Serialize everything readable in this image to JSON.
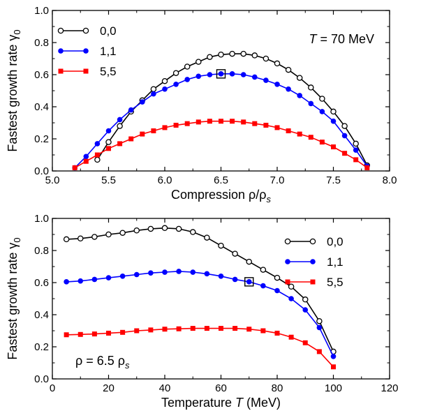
{
  "chart_data": [
    {
      "type": "line",
      "xlabel": "Compression ρ/ρ",
      "xlabel_sub": "s",
      "ylabel": "Fastest growth rate γ",
      "ylabel_sub": "0",
      "xlim": [
        5.0,
        8.0
      ],
      "ylim": [
        0.0,
        1.0
      ],
      "xticks": [
        "5.0",
        "5.5",
        "6.0",
        "6.5",
        "7.0",
        "7.5",
        "8.0"
      ],
      "yticks": [
        "0.0",
        "0.2",
        "0.4",
        "0.6",
        "0.8",
        "1.0"
      ],
      "legend_position": "top-left",
      "annotation": {
        "var": "T",
        "rest": " = 70 MeV"
      },
      "marker_highlight": {
        "x": 6.5,
        "y": 0.605
      },
      "series": [
        {
          "name": "0,0",
          "color": "#000000",
          "marker": "open-circle",
          "x": [
            5.4,
            5.5,
            5.6,
            5.7,
            5.8,
            5.9,
            6.0,
            6.1,
            6.2,
            6.3,
            6.4,
            6.5,
            6.6,
            6.7,
            6.8,
            6.9,
            7.0,
            7.1,
            7.2,
            7.3,
            7.4,
            7.5,
            7.6,
            7.7,
            7.8
          ],
          "y": [
            0.07,
            0.18,
            0.28,
            0.37,
            0.44,
            0.51,
            0.56,
            0.61,
            0.65,
            0.68,
            0.71,
            0.725,
            0.73,
            0.73,
            0.72,
            0.7,
            0.67,
            0.63,
            0.58,
            0.52,
            0.45,
            0.37,
            0.28,
            0.17,
            0.035
          ]
        },
        {
          "name": "1,1",
          "color": "#0000ff",
          "marker": "filled-circle",
          "x": [
            5.2,
            5.3,
            5.4,
            5.5,
            5.6,
            5.7,
            5.8,
            5.9,
            6.0,
            6.1,
            6.2,
            6.3,
            6.4,
            6.5,
            6.6,
            6.7,
            6.8,
            6.9,
            7.0,
            7.1,
            7.2,
            7.3,
            7.4,
            7.5,
            7.6,
            7.7,
            7.8
          ],
          "y": [
            0.02,
            0.09,
            0.17,
            0.25,
            0.32,
            0.38,
            0.43,
            0.48,
            0.51,
            0.54,
            0.57,
            0.59,
            0.6,
            0.605,
            0.605,
            0.6,
            0.585,
            0.565,
            0.54,
            0.51,
            0.47,
            0.42,
            0.37,
            0.31,
            0.22,
            0.13,
            0.03
          ]
        },
        {
          "name": "5,5",
          "color": "#ff0000",
          "marker": "filled-square",
          "x": [
            5.2,
            5.3,
            5.4,
            5.5,
            5.6,
            5.7,
            5.8,
            5.9,
            6.0,
            6.1,
            6.2,
            6.3,
            6.4,
            6.5,
            6.6,
            6.7,
            6.8,
            6.9,
            7.0,
            7.1,
            7.2,
            7.3,
            7.4,
            7.5,
            7.6,
            7.7,
            7.8
          ],
          "y": [
            0.02,
            0.06,
            0.1,
            0.14,
            0.17,
            0.2,
            0.23,
            0.25,
            0.27,
            0.285,
            0.295,
            0.305,
            0.31,
            0.31,
            0.31,
            0.305,
            0.295,
            0.285,
            0.27,
            0.25,
            0.23,
            0.21,
            0.18,
            0.15,
            0.11,
            0.07,
            0.02
          ]
        }
      ]
    },
    {
      "type": "line",
      "xlabel": "Temperature ",
      "xlabel_var": "T",
      "xlabel_unit": " (MeV)",
      "ylabel": "Fastest growth rate γ",
      "ylabel_sub": "0",
      "xlim": [
        0,
        120
      ],
      "ylim": [
        0.0,
        1.0
      ],
      "xticks": [
        "0",
        "20",
        "40",
        "60",
        "80",
        "100",
        "120"
      ],
      "yticks": [
        "0.0",
        "0.2",
        "0.4",
        "0.6",
        "0.8",
        "1.0"
      ],
      "legend_position": "top-right",
      "annotation": {
        "main": "ρ = 6.5 ρ",
        "sub": "s"
      },
      "marker_highlight": {
        "x": 70,
        "y": 0.605
      },
      "series": [
        {
          "name": "0,0",
          "color": "#000000",
          "marker": "open-circle",
          "x": [
            5,
            10,
            15,
            20,
            25,
            30,
            35,
            40,
            45,
            50,
            55,
            60,
            65,
            70,
            75,
            80,
            85,
            90,
            95,
            100
          ],
          "y": [
            0.87,
            0.875,
            0.885,
            0.9,
            0.91,
            0.925,
            0.935,
            0.94,
            0.935,
            0.915,
            0.88,
            0.83,
            0.78,
            0.73,
            0.68,
            0.63,
            0.575,
            0.495,
            0.36,
            0.17
          ]
        },
        {
          "name": "1,1",
          "color": "#0000ff",
          "marker": "filled-circle",
          "x": [
            5,
            10,
            15,
            20,
            25,
            30,
            35,
            40,
            45,
            50,
            55,
            60,
            65,
            70,
            75,
            80,
            85,
            90,
            95,
            100
          ],
          "y": [
            0.605,
            0.61,
            0.62,
            0.63,
            0.64,
            0.65,
            0.66,
            0.665,
            0.67,
            0.665,
            0.655,
            0.64,
            0.62,
            0.605,
            0.58,
            0.55,
            0.5,
            0.43,
            0.32,
            0.14
          ]
        },
        {
          "name": "5,5",
          "color": "#ff0000",
          "marker": "filled-square",
          "x": [
            5,
            10,
            15,
            20,
            25,
            30,
            35,
            40,
            45,
            50,
            55,
            60,
            65,
            70,
            75,
            80,
            85,
            90,
            95,
            100
          ],
          "y": [
            0.275,
            0.277,
            0.28,
            0.285,
            0.29,
            0.3,
            0.305,
            0.31,
            0.312,
            0.315,
            0.315,
            0.315,
            0.315,
            0.31,
            0.3,
            0.285,
            0.26,
            0.225,
            0.17,
            0.075
          ]
        }
      ]
    }
  ]
}
